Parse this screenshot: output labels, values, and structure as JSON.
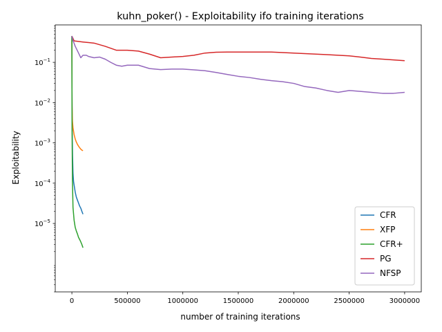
{
  "chart_data": {
    "type": "line",
    "title": "kuhn_poker() - Exploitability ifo training iterations",
    "xlabel": "number of training iterations",
    "ylabel": "Exploitability",
    "y_scale": "log",
    "xlim": [
      -150000,
      3150000
    ],
    "ylim": [
      2e-07,
      0.85
    ],
    "x_ticks": [
      0,
      500000,
      1000000,
      1500000,
      2000000,
      2500000,
      3000000
    ],
    "x_tick_labels": [
      "0",
      "500000",
      "1000000",
      "1500000",
      "2000000",
      "2500000",
      "3000000"
    ],
    "y_ticks": [
      1e-05,
      0.0001,
      0.001,
      0.01,
      0.1
    ],
    "y_tick_labels": [
      {
        "base": "10",
        "exp": "−5"
      },
      {
        "base": "10",
        "exp": "−4"
      },
      {
        "base": "10",
        "exp": "−3"
      },
      {
        "base": "10",
        "exp": "−2"
      },
      {
        "base": "10",
        "exp": "−1"
      }
    ],
    "grid": false,
    "legend_position": "lower-right",
    "series": [
      {
        "name": "CFR",
        "color": "#1f77b4",
        "x": [
          0,
          1000,
          3000,
          6000,
          10000,
          15000,
          20000,
          30000,
          40000,
          50000,
          60000,
          70000,
          80000,
          90000,
          100000
        ],
        "y": [
          0.45,
          0.02,
          0.002,
          0.0005,
          0.00018,
          0.00011,
          9e-05,
          6e-05,
          4.5e-05,
          3.8e-05,
          3.2e-05,
          2.7e-05,
          2.4e-05,
          2e-05,
          1.7e-05
        ]
      },
      {
        "name": "XFP",
        "color": "#ff7f0e",
        "x": [
          0,
          1000,
          2000,
          5000,
          10000,
          20000,
          30000,
          40000,
          50000,
          60000,
          70000,
          80000,
          90000,
          100000
        ],
        "y": [
          0.45,
          0.02,
          0.008,
          0.0035,
          0.0024,
          0.0016,
          0.00125,
          0.00105,
          0.00092,
          0.00083,
          0.00076,
          0.0007,
          0.00066,
          0.00064
        ]
      },
      {
        "name": "CFR+",
        "color": "#2ca02c",
        "x": [
          0,
          1000,
          2000,
          5000,
          10000,
          20000,
          30000,
          40000,
          50000,
          60000,
          70000,
          80000,
          90000,
          100000
        ],
        "y": [
          0.45,
          0.01,
          0.0015,
          0.00012,
          2.5e-05,
          1.2e-05,
          8e-06,
          6.5e-06,
          5.5e-06,
          4.5e-06,
          4e-06,
          3.5e-06,
          3e-06,
          2.5e-06
        ]
      },
      {
        "name": "PG",
        "color": "#d62728",
        "x": [
          0,
          20000,
          100000,
          200000,
          300000,
          400000,
          500000,
          600000,
          700000,
          800000,
          900000,
          1000000,
          1100000,
          1200000,
          1300000,
          1400000,
          1500000,
          1600000,
          1700000,
          1800000,
          1900000,
          2000000,
          2100000,
          2200000,
          2300000,
          2400000,
          2500000,
          2600000,
          2700000,
          2800000,
          2900000,
          3000000
        ],
        "y": [
          0.45,
          0.34,
          0.32,
          0.3,
          0.25,
          0.2,
          0.2,
          0.19,
          0.16,
          0.13,
          0.135,
          0.14,
          0.15,
          0.17,
          0.178,
          0.18,
          0.18,
          0.18,
          0.18,
          0.18,
          0.175,
          0.17,
          0.165,
          0.16,
          0.155,
          0.15,
          0.145,
          0.135,
          0.125,
          0.12,
          0.115,
          0.11
        ]
      },
      {
        "name": "NFSP",
        "color": "#9467bd",
        "x": [
          0,
          10000,
          30000,
          60000,
          80000,
          100000,
          130000,
          150000,
          200000,
          250000,
          300000,
          350000,
          400000,
          450000,
          500000,
          600000,
          700000,
          800000,
          900000,
          1000000,
          1100000,
          1200000,
          1300000,
          1400000,
          1500000,
          1600000,
          1700000,
          1800000,
          1900000,
          2000000,
          2100000,
          2200000,
          2300000,
          2400000,
          2500000,
          2600000,
          2700000,
          2800000,
          2900000,
          3000000
        ],
        "y": [
          0.45,
          0.35,
          0.25,
          0.17,
          0.13,
          0.15,
          0.15,
          0.14,
          0.13,
          0.135,
          0.12,
          0.1,
          0.085,
          0.08,
          0.085,
          0.085,
          0.07,
          0.066,
          0.068,
          0.068,
          0.065,
          0.062,
          0.056,
          0.05,
          0.045,
          0.042,
          0.038,
          0.035,
          0.033,
          0.03,
          0.025,
          0.023,
          0.02,
          0.018,
          0.02,
          0.019,
          0.018,
          0.017,
          0.017,
          0.018
        ]
      }
    ]
  }
}
